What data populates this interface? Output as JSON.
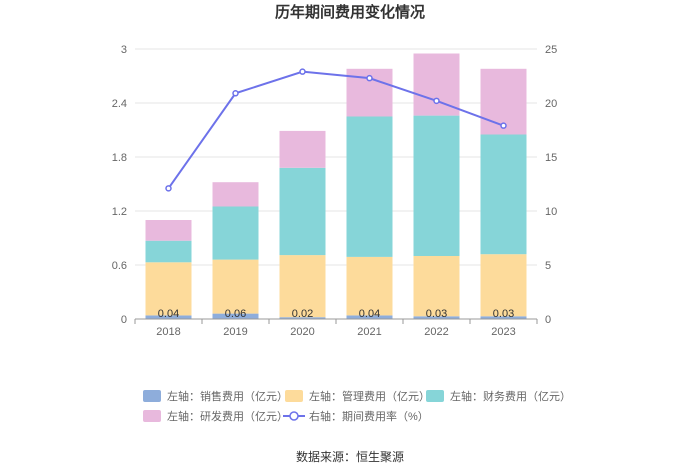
{
  "chart_data": {
    "type": "bar",
    "title": "历年期间费用变化情况",
    "categories": [
      "2018",
      "2019",
      "2020",
      "2021",
      "2022",
      "2023"
    ],
    "left_axis": {
      "ylim": [
        0,
        3
      ],
      "ticks": [
        "0",
        "0.6",
        "1.2",
        "1.8",
        "2.4",
        "3"
      ]
    },
    "right_axis": {
      "ylim": [
        0,
        25
      ],
      "ticks": [
        "0",
        "5",
        "10",
        "15",
        "20",
        "25"
      ]
    },
    "series": [
      {
        "name": "左轴：销售费用（亿元）",
        "type": "bar",
        "axis": "left",
        "color": "#8eaddb",
        "values": [
          0.04,
          0.06,
          0.02,
          0.04,
          0.03,
          0.03
        ],
        "labels": [
          "0.04",
          "0.06",
          "0.02",
          "0.04",
          "0.03",
          "0.03"
        ]
      },
      {
        "name": "左轴：管理费用（亿元）",
        "type": "bar",
        "axis": "left",
        "color": "#fddb9b",
        "values": [
          0.59,
          0.6,
          0.69,
          0.65,
          0.67,
          0.69
        ]
      },
      {
        "name": "左轴：财务费用（亿元）",
        "type": "bar",
        "axis": "left",
        "color": "#86d5d8",
        "values": [
          0.24,
          0.59,
          0.97,
          1.56,
          1.56,
          1.33
        ]
      },
      {
        "name": "左轴：研发费用（亿元）",
        "type": "bar",
        "axis": "left",
        "color": "#e8b9dd",
        "values": [
          0.23,
          0.27,
          0.41,
          0.53,
          0.69,
          0.73
        ]
      },
      {
        "name": "右轴：期间费用率（%）",
        "type": "line",
        "axis": "right",
        "color": "#6d72ea",
        "values": [
          12.1,
          20.9,
          22.9,
          22.3,
          20.2,
          17.9
        ]
      }
    ],
    "source": "数据来源：恒生聚源"
  }
}
